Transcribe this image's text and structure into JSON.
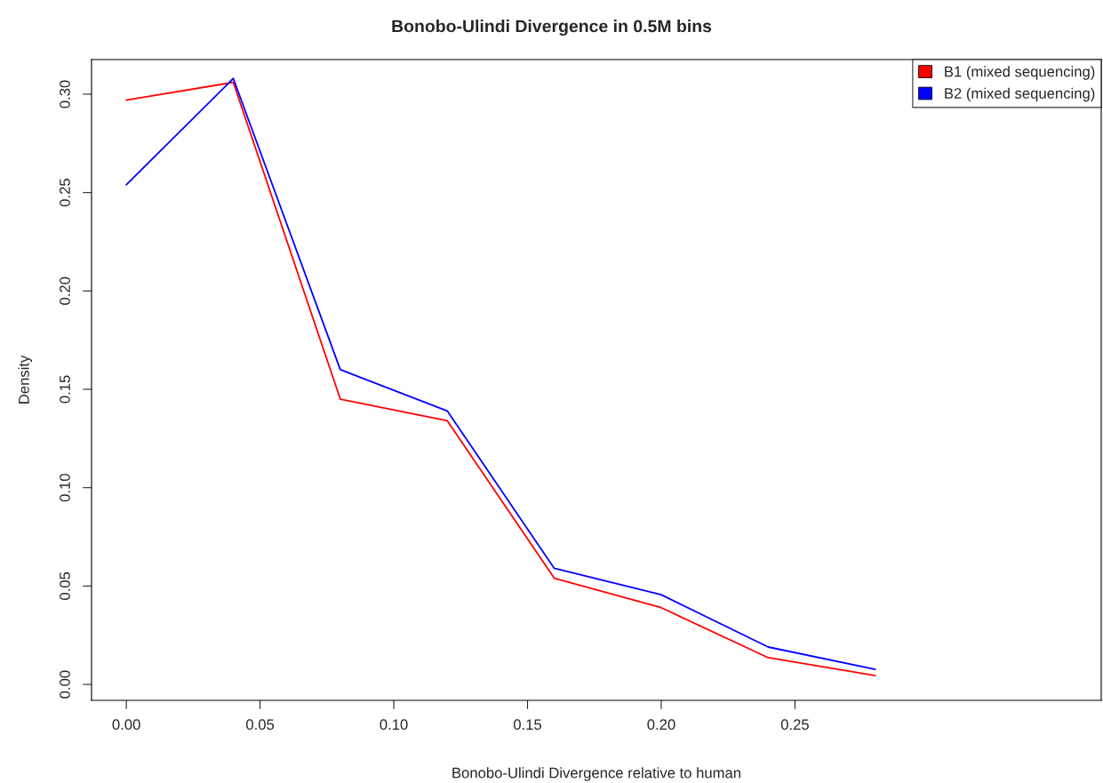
{
  "chart_data": {
    "type": "line",
    "title": "Bonobo-Ulindi Divergence in 0.5M bins",
    "xlabel": "Bonobo-Ulindi Divergence relative to human",
    "ylabel": "Density",
    "x": [
      0,
      0.04,
      0.08,
      0.12,
      0.16,
      0.2,
      0.24,
      0.28
    ],
    "series": [
      {
        "name": "B1 (mixed sequencing)",
        "color": "#ff0000",
        "values": [
          0.297,
          0.306,
          0.145,
          0.134,
          0.054,
          0.039,
          0.0136,
          0.0045
        ]
      },
      {
        "name": "B2 (mixed sequencing)",
        "color": "#0000ff",
        "values": [
          0.254,
          0.308,
          0.16,
          0.139,
          0.059,
          0.0456,
          0.019,
          0.0077
        ]
      }
    ],
    "xlim": [
      -0.013,
      0.3645
    ],
    "ylim": [
      -0.0081,
      0.3176
    ],
    "xticks": [
      {
        "value": 0,
        "label": "0.00"
      },
      {
        "value": 0.05,
        "label": "0.05"
      },
      {
        "value": 0.1,
        "label": "0.10"
      },
      {
        "value": 0.15,
        "label": "0.15"
      },
      {
        "value": 0.2,
        "label": "0.20"
      },
      {
        "value": 0.25,
        "label": "0.25"
      }
    ],
    "yticks": [
      {
        "value": 0,
        "label": "0.00"
      },
      {
        "value": 0.05,
        "label": "0.05"
      },
      {
        "value": 0.1,
        "label": "0.10"
      },
      {
        "value": 0.15,
        "label": "0.15"
      },
      {
        "value": 0.2,
        "label": "0.20"
      },
      {
        "value": 0.25,
        "label": "0.25"
      },
      {
        "value": 0.3,
        "label": "0.30"
      }
    ],
    "legend": "top right",
    "grid": false,
    "marker": "none",
    "line_style": "solid"
  }
}
